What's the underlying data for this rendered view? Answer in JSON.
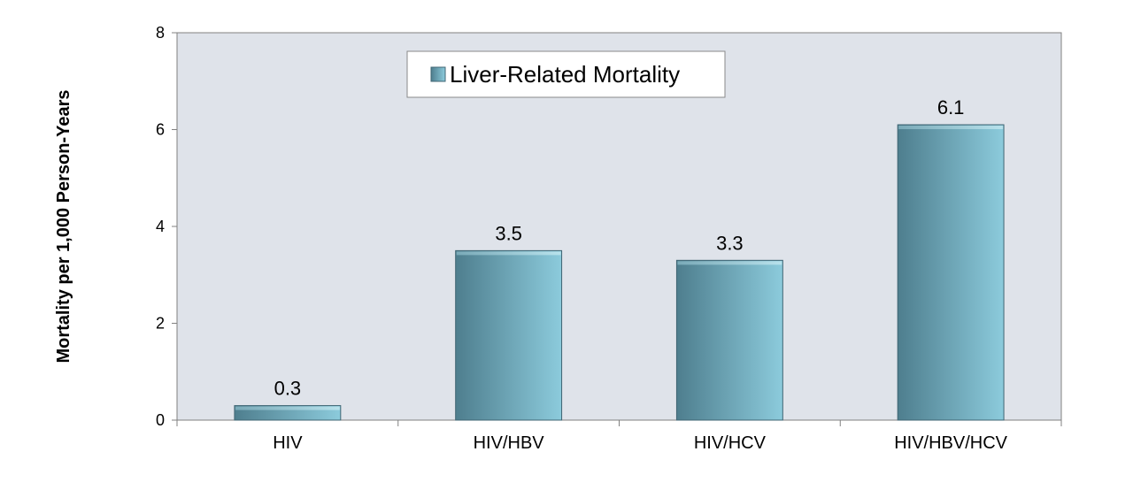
{
  "chart_data": {
    "type": "bar",
    "categories": [
      "HIV",
      "HIV/HBV",
      "HIV/HCV",
      "HIV/HBV/HCV"
    ],
    "series": [
      {
        "name": "Liver-Related Mortality",
        "values": [
          0.3,
          3.5,
          3.3,
          6.1
        ],
        "data_labels": [
          "0.3",
          "3.5",
          "3.3",
          "6.1"
        ]
      }
    ],
    "title": "",
    "xlabel": "",
    "ylabel": "Mortality per 1,000 Person-Years",
    "ylim": [
      0,
      8
    ],
    "yticks": [
      0,
      2,
      4,
      6,
      8
    ],
    "ytick_labels": [
      "0",
      "2",
      "4",
      "6",
      "8"
    ],
    "grid": false,
    "legend_position": "top-center",
    "colors": {
      "plot_background": "#dfe3ea",
      "bar_light": "#8ccbdc",
      "bar_dark": "#4e7e8e",
      "axis": "#808080"
    }
  }
}
